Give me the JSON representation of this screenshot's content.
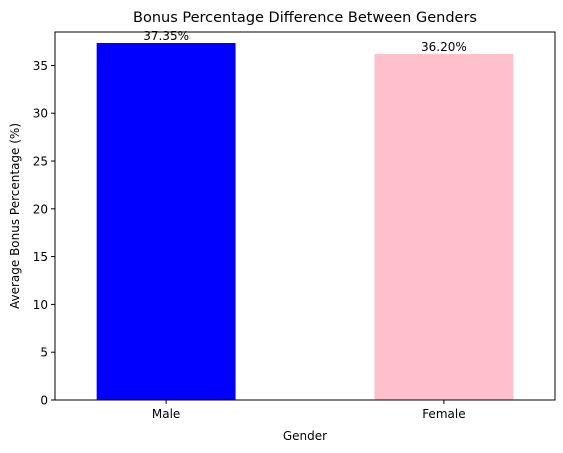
{
  "chart_data": {
    "type": "bar",
    "title": "Bonus Percentage Difference Between Genders",
    "xlabel": "Gender",
    "ylabel": "Average Bonus Percentage (%)",
    "categories": [
      "Male",
      "Female"
    ],
    "values": [
      37.35,
      36.2
    ],
    "value_labels": [
      "37.35%",
      "36.20%"
    ],
    "colors": [
      "#0000ff",
      "#ffc0cb"
    ],
    "ylim": [
      0,
      38.5
    ],
    "yticks": [
      0,
      5,
      10,
      15,
      20,
      25,
      30,
      35
    ],
    "grid": false,
    "legend": false
  }
}
